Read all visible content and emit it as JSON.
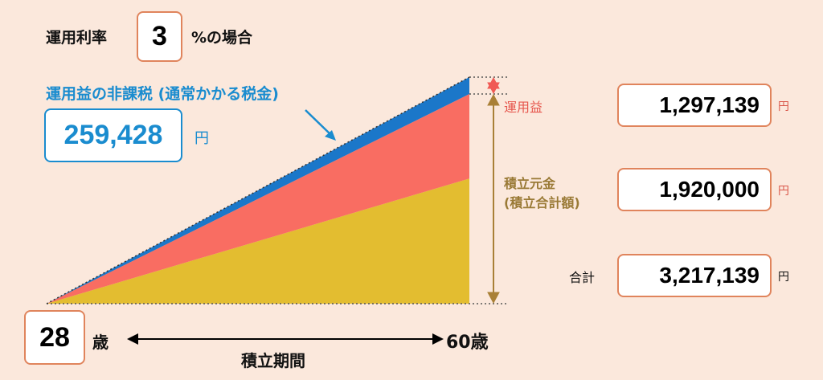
{
  "rate": {
    "label": "運用利率",
    "value": "3",
    "suffix": "%の場合"
  },
  "tax": {
    "label": "運用益の非課税 (通常かかる税金)",
    "value": "259,428",
    "unit": "円"
  },
  "profit": {
    "label": "運用益",
    "value": "1,297,139",
    "unit": "円"
  },
  "principal": {
    "label_line1": "積立元金",
    "label_line2": "(積立合計額)",
    "value": "1,920,000",
    "unit": "円"
  },
  "total": {
    "label": "合計",
    "value": "3,217,139",
    "unit": "円"
  },
  "age": {
    "start": "28",
    "start_unit": "歳",
    "end": "60歳",
    "period_label": "積立期間"
  },
  "chart_data": {
    "type": "area",
    "series": [
      {
        "name": "積立元金",
        "value": 1920000,
        "color": "#e3bd30"
      },
      {
        "name": "運用益",
        "value": 1297139,
        "color": "#f96d62"
      },
      {
        "name": "運用益の非課税",
        "value": 259428,
        "color": "#1b77c9"
      }
    ],
    "x_start": "28",
    "x_end": "60歳"
  },
  "colors": {
    "principal": "#e3bd30",
    "profit": "#f96d62",
    "tax": "#1b77c9",
    "border": "#e0845c",
    "profit_text": "#e6564d",
    "principal_text": "#9a7a36",
    "tax_text": "#1a8ccf"
  }
}
